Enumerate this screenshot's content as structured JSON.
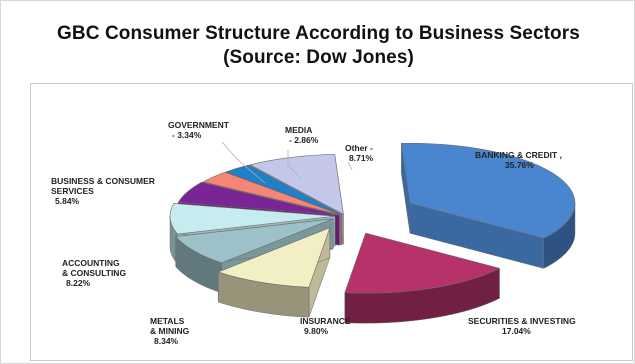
{
  "chart_data": {
    "type": "pie",
    "title_line1": "GBC Consumer Structure According to Business Sectors",
    "title_line2": "(Source: Dow Jones)",
    "slices": [
      {
        "name": "BANKING & CREDIT ,",
        "pct_label": "35.76%",
        "value": 35.76,
        "color": "#4a86cf",
        "exploded": true
      },
      {
        "name": "SECURITIES & INVESTING",
        "pct_label": "17.04%",
        "value": 17.04,
        "color": "#b7326a",
        "exploded": true
      },
      {
        "name": "INSURANCE",
        "pct_label": "9.80%",
        "value": 9.8,
        "color": "#f3efc4",
        "exploded": true
      },
      {
        "name": "METALS & MINING",
        "name_lines": [
          "METALS",
          "& MINING"
        ],
        "pct_label": "8.34%",
        "value": 8.34,
        "color": "#9cc1c8",
        "exploded": false
      },
      {
        "name": "ACCOUNTING & CONSULTING",
        "name_lines": [
          "ACCOUNTING",
          "& CONSULTING"
        ],
        "pct_label": "8.22%",
        "value": 8.22,
        "color": "#c7ecef",
        "exploded": false
      },
      {
        "name": "BUSINESS & CONSUMER SERVICES",
        "name_lines": [
          "BUSINESS & CONSUMER",
          "SERVICES"
        ],
        "pct_label": "5.84%",
        "value": 5.84,
        "color": "#7a2596",
        "exploded": false
      },
      {
        "name": "GOVERNMENT",
        "pct_label": "- 3.34%",
        "value": 3.34,
        "color": "#f48577",
        "exploded": false
      },
      {
        "name": "MEDIA",
        "pct_label": "- 2.86%",
        "value": 2.86,
        "color": "#1f7fc9",
        "exploded": false
      },
      {
        "name": "Other -",
        "pct_label": "8.71%",
        "value": 8.71,
        "color": "#c3c8ea",
        "exploded": false
      }
    ]
  }
}
